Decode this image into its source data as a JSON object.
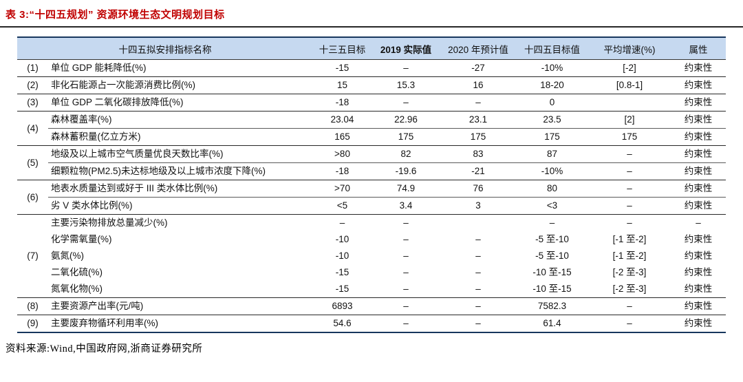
{
  "title": "表 3:“十四五规划” 资源环境生态文明规划目标",
  "source": "资料来源:Wind,中国政府网,浙商证券研究所",
  "colors": {
    "title_color": "#c00000",
    "header_bg": "#c6d9f0",
    "border_dark": "#17365d",
    "rule_color": "#262626"
  },
  "table": {
    "headers": [
      "十四五拟安排指标名称",
      "十三五目标",
      "2019 实际值",
      "2020 年预计值",
      "十四五目标值",
      "平均增速(%)",
      "属性"
    ],
    "groups": [
      {
        "num": "(1)",
        "dividers": false,
        "rows": [
          {
            "name": "单位 GDP 能耗降低(%)",
            "values": [
              "-15",
              "–",
              "-27",
              "-10%",
              "[-2]",
              "约束性"
            ]
          }
        ]
      },
      {
        "num": "(2)",
        "dividers": false,
        "rows": [
          {
            "name": "非化石能源占一次能源消费比例(%)",
            "values": [
              "15",
              "15.3",
              "16",
              "18-20",
              "[0.8-1]",
              "约束性"
            ]
          }
        ]
      },
      {
        "num": "(3)",
        "dividers": false,
        "rows": [
          {
            "name": "单位 GDP 二氧化碳排放降低(%)",
            "values": [
              "-18",
              "–",
              "–",
              "0",
              "",
              "约束性"
            ]
          }
        ]
      },
      {
        "num": "(4)",
        "dividers": true,
        "rows": [
          {
            "name": "森林覆盖率(%)",
            "values": [
              "23.04",
              "22.96",
              "23.1",
              "23.5",
              "[2]",
              "约束性"
            ]
          },
          {
            "name": "森林蓄积量(亿立方米)",
            "values": [
              "165",
              "175",
              "175",
              "175",
              "175",
              "约束性"
            ]
          }
        ]
      },
      {
        "num": "(5)",
        "dividers": true,
        "rows": [
          {
            "name": "地级及以上城市空气质量优良天数比率(%)",
            "values": [
              ">80",
              "82",
              "83",
              "87",
              "–",
              "约束性"
            ]
          },
          {
            "name": "细颗粒物(PM2.5)未达标地级及以上城市浓度下降(%)",
            "values": [
              "-18",
              "-19.6",
              "-21",
              "-10%",
              "–",
              "约束性"
            ]
          }
        ]
      },
      {
        "num": "(6)",
        "dividers": true,
        "rows": [
          {
            "name": "地表水质量达到或好于 III 类水体比例(%)",
            "values": [
              ">70",
              "74.9",
              "76",
              "80",
              "–",
              "约束性"
            ]
          },
          {
            "name": "劣 V 类水体比例(%)",
            "values": [
              "<5",
              "3.4",
              "3",
              "<3",
              "–",
              "约束性"
            ]
          }
        ]
      },
      {
        "num": "(7)",
        "dividers": false,
        "rows": [
          {
            "name": "主要污染物排放总量减少(%)",
            "values": [
              "–",
              "–",
              "",
              "–",
              "–",
              "–"
            ]
          },
          {
            "name": "化学需氧量(%)",
            "values": [
              "-10",
              "–",
              "–",
              "-5 至-10",
              "[-1 至-2]",
              "约束性"
            ]
          },
          {
            "name": "氨氮(%)",
            "values": [
              "-10",
              "–",
              "–",
              "-5 至-10",
              "[-1 至-2]",
              "约束性"
            ]
          },
          {
            "name": "二氧化硫(%)",
            "values": [
              "-15",
              "–",
              "–",
              "-10 至-15",
              "[-2 至-3]",
              "约束性"
            ]
          },
          {
            "name": "氮氧化物(%)",
            "values": [
              "-15",
              "–",
              "–",
              "-10 至-15",
              "[-2 至-3]",
              "约束性"
            ]
          }
        ]
      },
      {
        "num": "(8)",
        "dividers": false,
        "rows": [
          {
            "name": "主要资源产出率(元/吨)",
            "values": [
              "6893",
              "–",
              "–",
              "7582.3",
              "–",
              "约束性"
            ]
          }
        ]
      },
      {
        "num": "(9)",
        "dividers": false,
        "rows": [
          {
            "name": "主要废弃物循环利用率(%)",
            "values": [
              "54.6",
              "–",
              "–",
              "61.4",
              "–",
              "约束性"
            ]
          }
        ]
      }
    ]
  }
}
